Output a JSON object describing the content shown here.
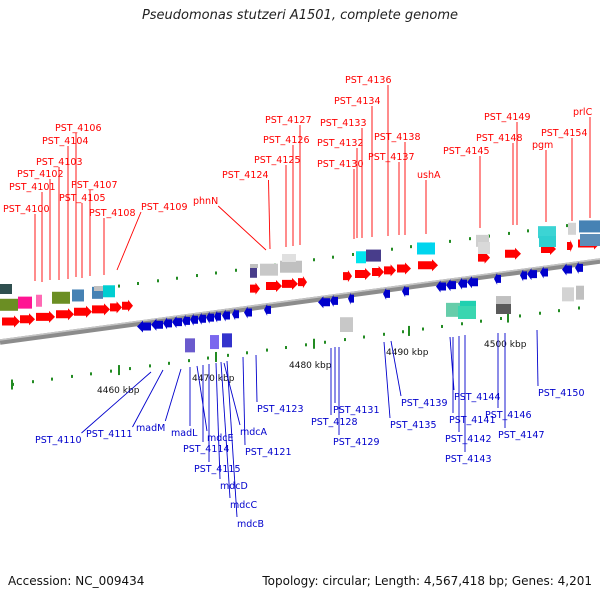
{
  "title": "Pseudomonas stutzeri A1501, complete genome",
  "footer": {
    "accession": "Accession: NC_009434",
    "topology": "Topology: circular; Length: 4,567,418 bp; Genes: 4,201"
  },
  "colors": {
    "forward": "#ff0000",
    "reverse": "#0000cc",
    "backbone": "#8c8c8c",
    "dot_marker": "#228b22"
  },
  "scale_ticks": [
    {
      "label": "4460 kbp"
    },
    {
      "label": "4470 kbp"
    },
    {
      "label": "4480 kbp"
    },
    {
      "label": "4490 kbp"
    },
    {
      "label": "4500 kbp"
    }
  ],
  "top_labels": [
    {
      "label": "PST_4100"
    },
    {
      "label": "PST_4101"
    },
    {
      "label": "PST_4102"
    },
    {
      "label": "PST_4103"
    },
    {
      "label": "PST_4104"
    },
    {
      "label": "PST_4105"
    },
    {
      "label": "PST_4106"
    },
    {
      "label": "PST_4107"
    },
    {
      "label": "PST_4108"
    },
    {
      "label": "PST_4109"
    },
    {
      "label": "phnN"
    },
    {
      "label": "PST_4124"
    },
    {
      "label": "PST_4125"
    },
    {
      "label": "PST_4126"
    },
    {
      "label": "PST_4127"
    },
    {
      "label": "PST_4130"
    },
    {
      "label": "PST_4132"
    },
    {
      "label": "PST_4133"
    },
    {
      "label": "PST_4134"
    },
    {
      "label": "PST_4136"
    },
    {
      "label": "PST_4137"
    },
    {
      "label": "PST_4138"
    },
    {
      "label": "ushA"
    },
    {
      "label": "PST_4145"
    },
    {
      "label": "PST_4148"
    },
    {
      "label": "PST_4149"
    },
    {
      "label": "pgm"
    },
    {
      "label": "PST_4154"
    },
    {
      "label": "prlC"
    }
  ],
  "bottom_labels": [
    {
      "label": "PST_4110"
    },
    {
      "label": "PST_4111"
    },
    {
      "label": "madM"
    },
    {
      "label": "madL"
    },
    {
      "label": "mdcE"
    },
    {
      "label": "PST_4114"
    },
    {
      "label": "PST_4115"
    },
    {
      "label": "mdcA"
    },
    {
      "label": "mdcD"
    },
    {
      "label": "mdcC"
    },
    {
      "label": "mdcB"
    },
    {
      "label": "PST_4121"
    },
    {
      "label": "PST_4123"
    },
    {
      "label": "PST_4128"
    },
    {
      "label": "PST_4131"
    },
    {
      "label": "PST_4129"
    },
    {
      "label": "PST_4135"
    },
    {
      "label": "PST_4139"
    },
    {
      "label": "PST_4141"
    },
    {
      "label": "PST_4142"
    },
    {
      "label": "PST_4143"
    },
    {
      "label": "PST_4144"
    },
    {
      "label": "PST_4146"
    },
    {
      "label": "PST_4147"
    },
    {
      "label": "PST_4150"
    }
  ]
}
